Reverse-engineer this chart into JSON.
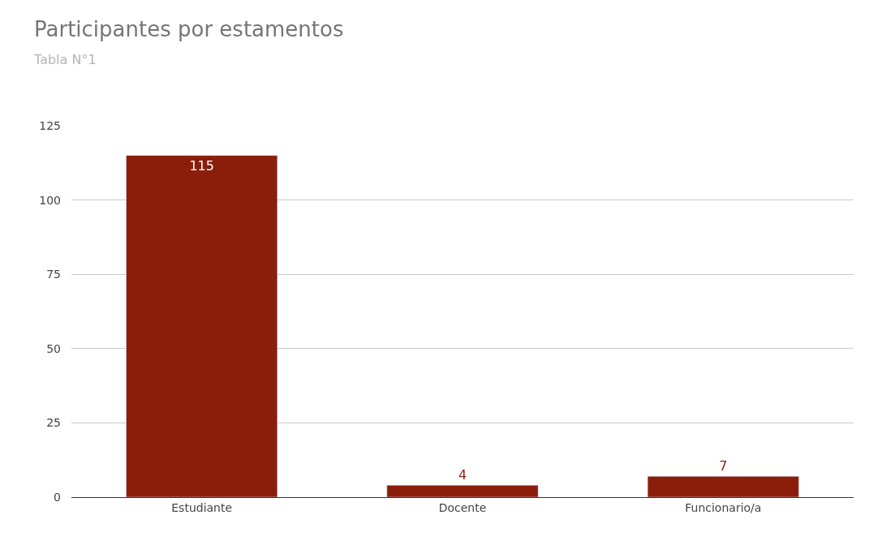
{
  "chart_data": {
    "type": "bar",
    "title": "Participantes por estamentos",
    "subtitle": "Tabla N°1",
    "categories": [
      "Estudiante",
      "Docente",
      "Funcionario/a"
    ],
    "values": [
      115,
      4,
      7
    ],
    "color": "#8b1e0b",
    "ylim": [
      0,
      125
    ],
    "yticks": [
      0,
      25,
      50,
      75,
      100,
      125
    ],
    "grid": "y",
    "data_labels": true
  }
}
